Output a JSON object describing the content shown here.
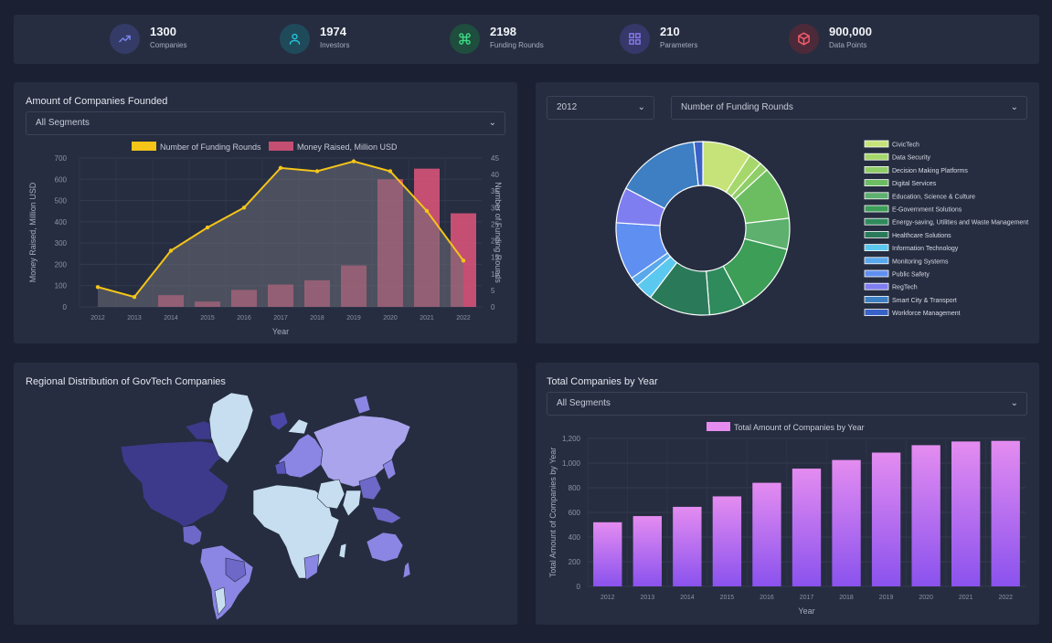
{
  "stats": [
    {
      "value": "1300",
      "label": "Companies",
      "icon": "trending-up-icon",
      "color": "#7b86f0",
      "bg": "#343b67"
    },
    {
      "value": "1974",
      "label": "Investors",
      "icon": "user-icon",
      "color": "#26c6da",
      "bg": "#1f4a5a"
    },
    {
      "value": "2198",
      "label": "Funding Rounds",
      "icon": "command-icon",
      "color": "#3ddc84",
      "bg": "#1f4d3e"
    },
    {
      "value": "210",
      "label": "Parameters",
      "icon": "grid-icon",
      "color": "#8a7bf0",
      "bg": "#36386a"
    },
    {
      "value": "900,000",
      "label": "Data Points",
      "icon": "box-icon",
      "color": "#ff5d6c",
      "bg": "#4c2a3a"
    }
  ],
  "founded": {
    "title": "Amount of Companies Founded",
    "segment": "All Segments"
  },
  "donut_panel": {
    "year": "2012",
    "metric": "Number of Funding Rounds"
  },
  "map_panel": {
    "title": "Regional Distribution of GovTech Companies"
  },
  "total_panel": {
    "title": "Total Companies by Year",
    "segment": "All Segments"
  },
  "chart_data": [
    {
      "type": "bar",
      "categories": [
        "2012",
        "2013",
        "2014",
        "2015",
        "2016",
        "2017",
        "2018",
        "2019",
        "2020",
        "2021",
        "2022"
      ],
      "series": [
        {
          "name": "Money Raised, Million USD",
          "type": "bar",
          "axis": "left",
          "values": [
            0,
            0,
            55,
            25,
            80,
            105,
            125,
            195,
            600,
            650,
            440
          ]
        },
        {
          "name": "Number of Funding Rounds",
          "type": "line",
          "axis": "right",
          "values": [
            6,
            3,
            17,
            24,
            30,
            42,
            41,
            44,
            41,
            29,
            14
          ]
        }
      ],
      "xlabel": "Year",
      "ylabel": "Money Raised, Million USD",
      "y2label": "Number of Funding Rounds",
      "ylim": [
        0,
        700
      ],
      "y2lim": [
        0,
        45
      ],
      "yticks": [
        0,
        100,
        200,
        300,
        400,
        500,
        600,
        700
      ],
      "y2ticks": [
        0,
        5,
        10,
        15,
        20,
        25,
        30,
        35,
        40,
        45
      ],
      "legend": "top",
      "colors": {
        "bars": "#e0567b",
        "line": "#f5c518",
        "area": "#6b6e76"
      }
    },
    {
      "type": "pie",
      "labels": [
        "CivicTech",
        "Data Security",
        "Decision Making Platforms",
        "Digital Services",
        "Education, Science & Culture",
        "E-Government Solutions",
        "Energy-saving, Utilities and Waste Management",
        "Healthcare Solutions",
        "Information Technology",
        "Monitoring Systems",
        "Public Safety",
        "RegTech",
        "Smart City & Transport",
        "Workforce Management"
      ],
      "values": [
        11,
        3,
        2,
        12,
        7,
        16,
        8,
        14,
        4,
        2,
        13,
        8,
        19,
        2
      ],
      "colors": [
        "#c5e378",
        "#a6d76b",
        "#8fcd66",
        "#6cbd62",
        "#5db06e",
        "#3c9e57",
        "#2f8a5c",
        "#2a7a5a",
        "#5bc8f0",
        "#5aa8ec",
        "#5f8ff0",
        "#7f7ef0",
        "#3d7fc2",
        "#3862c8"
      ],
      "legend": "right"
    },
    {
      "type": "bar",
      "categories": [
        "2012",
        "2013",
        "2014",
        "2015",
        "2016",
        "2017",
        "2018",
        "2019",
        "2020",
        "2021",
        "2022"
      ],
      "series": [
        {
          "name": "Total Amount of Companies by Year",
          "values": [
            520,
            570,
            645,
            730,
            840,
            955,
            1025,
            1085,
            1145,
            1175,
            1180
          ]
        }
      ],
      "xlabel": "Year",
      "ylabel": "Total Amount of Companies by Year",
      "ylim": [
        0,
        1200
      ],
      "yticks": [
        "0",
        "200",
        "400",
        "600",
        "800",
        "1,000",
        "1,200"
      ],
      "legend": "top",
      "colors": {
        "top": "#e48cf0",
        "bottom": "#8a52ee"
      }
    }
  ]
}
